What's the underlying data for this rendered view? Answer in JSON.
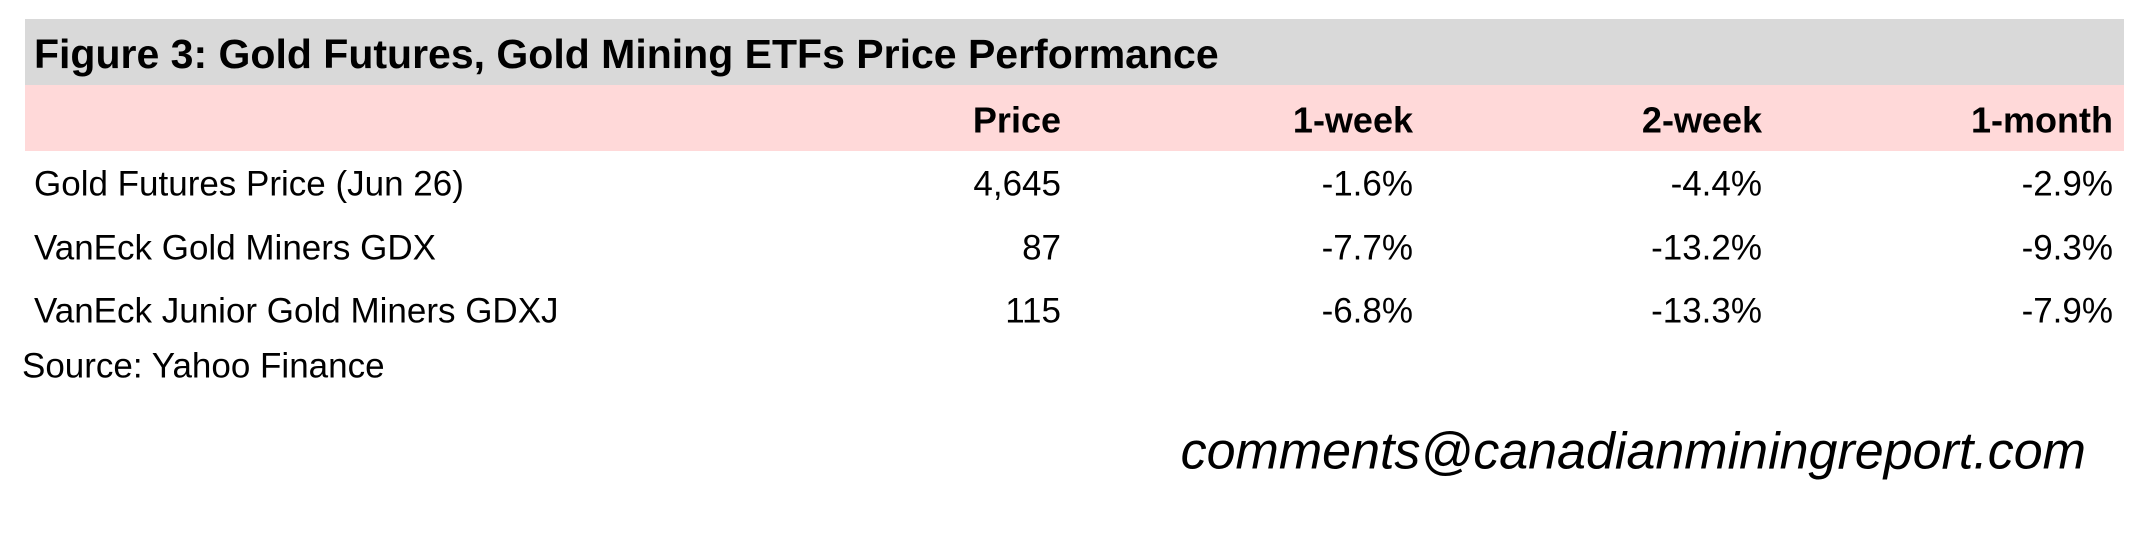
{
  "table": {
    "title": "Figure 3: Gold Futures, Gold Mining ETFs Price Performance",
    "columns": [
      "Price",
      "1-week",
      "2-week",
      "1-month"
    ],
    "rows": [
      {
        "label": "Gold Futures Price (Jun 26)",
        "cells": [
          "4,645",
          "-1.6%",
          "-4.4%",
          "-2.9%"
        ]
      },
      {
        "label": "VanEck Gold Miners GDX",
        "cells": [
          "87",
          "-7.7%",
          "-13.2%",
          "-9.3%"
        ]
      },
      {
        "label": "VanEck Junior Gold Miners GDXJ",
        "cells": [
          "115",
          "-6.8%",
          "-13.3%",
          "-7.9%"
        ]
      }
    ],
    "source": "Source: Yahoo Finance"
  },
  "footer": {
    "email": "comments@canadianminingreport.com"
  }
}
